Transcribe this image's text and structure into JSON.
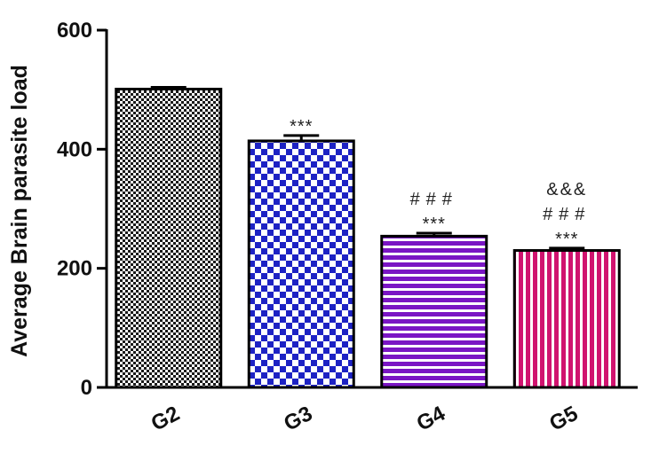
{
  "chart_data": {
    "type": "bar",
    "title": "",
    "xlabel": "",
    "ylabel": "Average Brain parasite load",
    "categories": [
      "G2",
      "G3",
      "G4",
      "G5"
    ],
    "values": [
      501,
      414,
      254,
      230
    ],
    "error": [
      3,
      9,
      5,
      4
    ],
    "ylim": [
      0,
      600
    ],
    "yticks": [
      "0",
      "200",
      "400",
      "600"
    ],
    "grid": false,
    "bar_styles": [
      {
        "pattern": "checker-fine",
        "color": "#1a1a1a"
      },
      {
        "pattern": "checker-coarse",
        "color": "#1d22c4"
      },
      {
        "pattern": "horizontal-stripes",
        "color": "#7a16c4"
      },
      {
        "pattern": "vertical-stripes",
        "color": "#d0136f"
      }
    ],
    "annotations": [
      [],
      [
        "***"
      ],
      [
        "###",
        "***"
      ],
      [
        "&&&",
        "###",
        "***"
      ]
    ]
  }
}
